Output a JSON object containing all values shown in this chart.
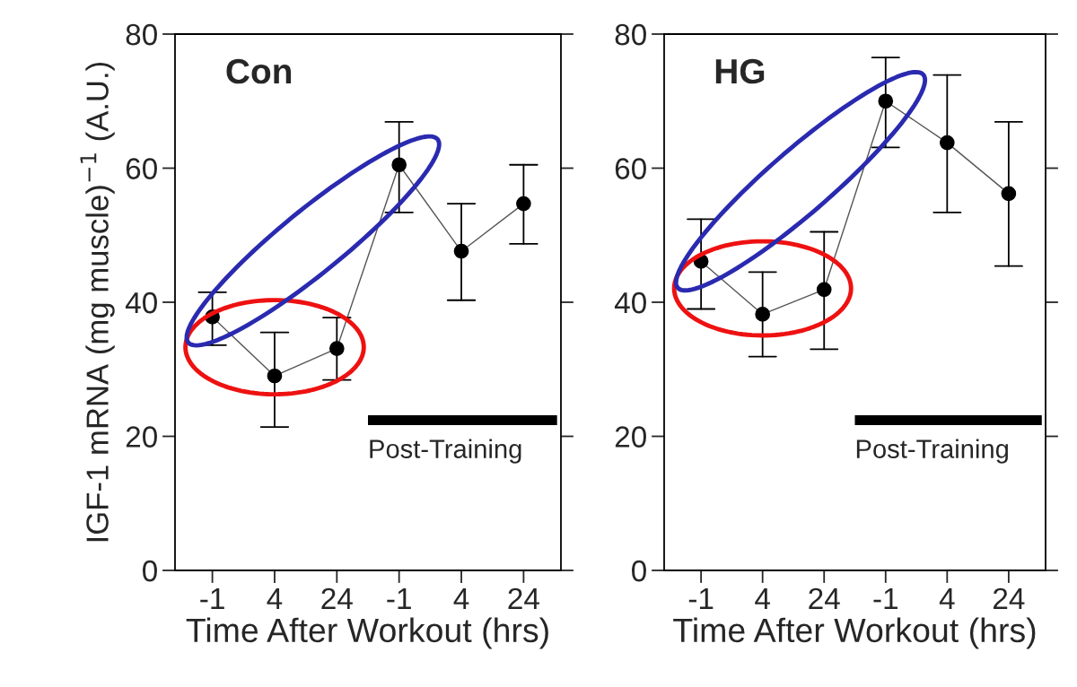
{
  "chart_data": [
    {
      "type": "line",
      "title": "Con",
      "xlabel": "Time After Workout (hrs)",
      "ylabel": "IGF-1 mRNA (mg muscle)$^{−1}$ (A.U.)",
      "categories": [
        "-1",
        "4",
        "24",
        "-1",
        "4",
        "24"
      ],
      "color": "#000000",
      "values": [
        37.8,
        29.0,
        33.1,
        60.5,
        47.6,
        54.7
      ],
      "errors": [
        [
          33.6,
          41.5
        ],
        [
          21.4,
          35.5
        ],
        [
          28.4,
          37.7
        ],
        [
          53.4,
          66.9
        ],
        [
          40.3,
          54.7
        ],
        [
          48.7,
          60.5
        ]
      ],
      "ylim": [
        0,
        80
      ],
      "yticks": [
        0,
        20,
        40,
        60,
        80
      ],
      "marker": "circle",
      "line_style": "solid",
      "annotations": [
        "Post-Training"
      ]
    },
    {
      "type": "line",
      "title": "HG",
      "xlabel": "Time After Workout (hrs)",
      "categories": [
        "-1",
        "4",
        "24",
        "-1",
        "4",
        "24"
      ],
      "color": "#000000",
      "values": [
        46.1,
        38.2,
        41.9,
        70.0,
        63.8,
        56.2
      ],
      "errors": [
        [
          39.0,
          52.4
        ],
        [
          31.9,
          44.5
        ],
        [
          33.0,
          50.5
        ],
        [
          63.1,
          76.5
        ],
        [
          53.4,
          73.9
        ],
        [
          45.4,
          66.9
        ]
      ],
      "ylim": [
        0,
        80
      ],
      "yticks": [
        0,
        20,
        40,
        60,
        80
      ],
      "marker": "circle",
      "line_style": "solid",
      "annotations": [
        "Post-Training"
      ]
    }
  ]
}
